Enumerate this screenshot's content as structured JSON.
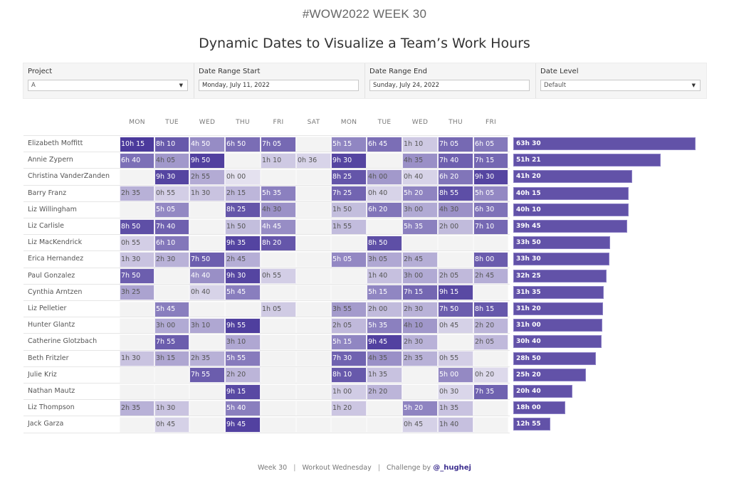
{
  "header": {
    "week_title": "#WOW2022 WEEK 30",
    "main_title": "Dynamic Dates to Visualize a Team’s Work Hours"
  },
  "filters": [
    {
      "label": "Project",
      "value": "A",
      "type": "dropdown",
      "icon": "caret-down-icon"
    },
    {
      "label": "Date Range Start",
      "value": "Monday, July 11, 2022",
      "type": "date"
    },
    {
      "label": "Date Range End",
      "value": "Sunday, July 24, 2022",
      "type": "date"
    },
    {
      "label": "Date Level",
      "value": "Default",
      "type": "dropdown",
      "icon": "caret-down-icon"
    }
  ],
  "colors": {
    "bar": "#6252a8",
    "empty_cell": "#f3f3f3",
    "scale_low": "#e4e1ef",
    "scale_high": "#4b3a9c"
  },
  "chart_data": {
    "type": "heatmap",
    "title": "Dynamic Dates to Visualize a Team’s Work Hours",
    "columns": [
      "MON",
      "TUE",
      "WED",
      "THU",
      "FRI",
      "SAT",
      "MON",
      "TUE",
      "WED",
      "THU",
      "FRI"
    ],
    "rows": [
      {
        "name": "Elizabeth Moffitt",
        "cells": [
          "10h 15",
          "8h 10",
          "4h 50",
          "6h 50",
          "7h 05",
          "",
          "5h 15",
          "6h 45",
          "1h 10",
          "7h 05",
          "6h 05"
        ],
        "total": "63h 30"
      },
      {
        "name": "Annie Zypern",
        "cells": [
          "6h 40",
          "4h 05",
          "9h 50",
          "",
          "1h 10",
          "0h 36",
          "9h 30",
          "",
          "4h 35",
          "7h 40",
          "7h 15"
        ],
        "total": "51h 21"
      },
      {
        "name": "Christina VanderZanden",
        "cells": [
          "",
          "9h 30",
          "2h 55",
          "0h 00",
          "",
          "",
          "8h 25",
          "4h 00",
          "0h 40",
          "6h 20",
          "9h 30"
        ],
        "total": "41h 20"
      },
      {
        "name": "Barry Franz",
        "cells": [
          "2h 35",
          "0h 55",
          "1h 30",
          "2h 15",
          "5h 35",
          "",
          "7h 25",
          "0h 40",
          "5h 20",
          "8h 55",
          "5h 05"
        ],
        "total": "40h 15"
      },
      {
        "name": "Liz Willingham",
        "cells": [
          "",
          "5h 05",
          "",
          "8h 25",
          "4h 30",
          "",
          "1h 50",
          "6h 20",
          "3h 00",
          "4h 30",
          "6h 30"
        ],
        "total": "40h 10"
      },
      {
        "name": "Liz Carlisle",
        "cells": [
          "8h 50",
          "7h 40",
          "",
          "1h 50",
          "4h 45",
          "",
          "1h 55",
          "",
          "5h 35",
          "2h 00",
          "7h 10"
        ],
        "total": "39h 45"
      },
      {
        "name": "Liz MacKendrick",
        "cells": [
          "0h 55",
          "6h 10",
          "",
          "9h 35",
          "8h 20",
          "",
          "",
          "8h 50",
          "",
          "",
          ""
        ],
        "total": "33h 50"
      },
      {
        "name": "Erica Hernandez",
        "cells": [
          "1h 30",
          "2h 30",
          "7h 50",
          "2h 45",
          "",
          "",
          "5h 05",
          "3h 05",
          "2h 45",
          "",
          "8h 00"
        ],
        "total": "33h 30"
      },
      {
        "name": "Paul Gonzalez",
        "cells": [
          "7h 50",
          "",
          "4h 40",
          "9h 30",
          "0h 55",
          "",
          "",
          "1h 40",
          "3h 00",
          "2h 05",
          "2h 45"
        ],
        "total": "32h 25"
      },
      {
        "name": "Cynthia Arntzen",
        "cells": [
          "3h 25",
          "",
          "0h 40",
          "5h 45",
          "",
          "",
          "",
          "5h 15",
          "7h 15",
          "9h 15",
          ""
        ],
        "total": "31h 35"
      },
      {
        "name": "Liz Pelletier",
        "cells": [
          "",
          "5h 45",
          "",
          "",
          "1h 05",
          "",
          "3h 55",
          "2h 00",
          "2h 30",
          "7h 50",
          "8h 15"
        ],
        "total": "31h 20"
      },
      {
        "name": "Hunter Glantz",
        "cells": [
          "",
          "3h 00",
          "3h 10",
          "9h 55",
          "",
          "",
          "2h 05",
          "5h 35",
          "4h 10",
          "0h 45",
          "2h 20"
        ],
        "total": "31h 00"
      },
      {
        "name": "Catherine Glotzbach",
        "cells": [
          "",
          "7h 55",
          "",
          "3h 10",
          "",
          "",
          "5h 15",
          "9h 45",
          "2h 30",
          "",
          "2h 05"
        ],
        "total": "30h 40"
      },
      {
        "name": "Beth Fritzler",
        "cells": [
          "1h 30",
          "3h 15",
          "2h 35",
          "5h 55",
          "",
          "",
          "7h 30",
          "4h 35",
          "2h 35",
          "0h 55",
          ""
        ],
        "total": "28h 50"
      },
      {
        "name": "Julie Kriz",
        "cells": [
          "",
          "",
          "7h 55",
          "2h 20",
          "",
          "",
          "8h 10",
          "1h 35",
          "",
          "5h 00",
          "0h 20"
        ],
        "total": "25h 20"
      },
      {
        "name": "Nathan Mautz",
        "cells": [
          "",
          "",
          "",
          "9h 15",
          "",
          "",
          "1h 00",
          "2h 20",
          "",
          "0h 30",
          "7h 35"
        ],
        "total": "20h 40"
      },
      {
        "name": "Liz Thompson",
        "cells": [
          "2h 35",
          "1h 30",
          "",
          "5h 40",
          "",
          "",
          "1h 20",
          "",
          "5h 20",
          "1h 35",
          ""
        ],
        "total": "18h 00"
      },
      {
        "name": "Jack Garza",
        "cells": [
          "",
          "0h 45",
          "",
          "9h 45",
          "",
          "",
          "",
          "",
          "0h 45",
          "1h 40",
          ""
        ],
        "total": "12h 55"
      }
    ],
    "bar_series": {
      "name": "Total Hours",
      "type": "bar",
      "max_reference_hours": 63.5
    }
  },
  "footer": {
    "week": "Week 30",
    "separator": "|",
    "program": "Workout Wednesday",
    "challenge_prefix": "Challenge by",
    "handle": "@_hughej"
  }
}
